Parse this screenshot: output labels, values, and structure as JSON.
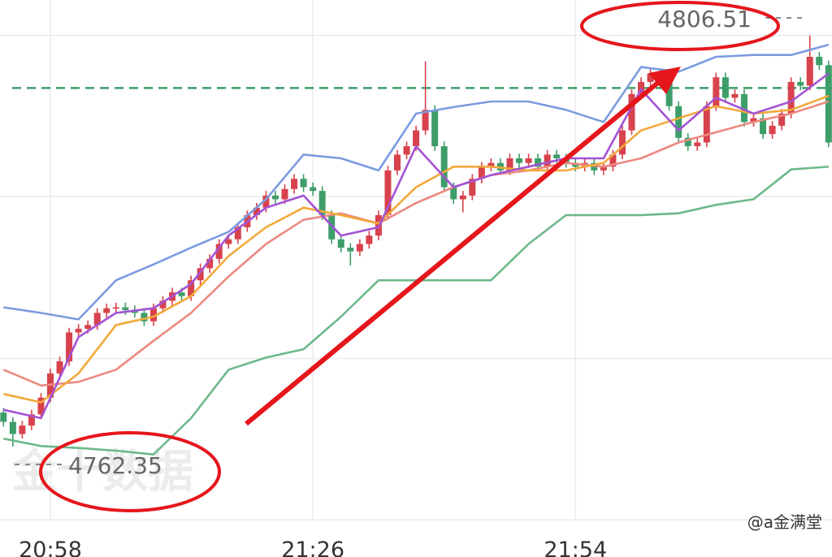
{
  "chart_data": {
    "type": "candlestick",
    "x": [
      null,
      null,
      null,
      null,
      null,
      "20:58",
      null,
      null,
      null,
      null,
      null,
      null,
      null,
      null,
      null,
      null,
      null,
      null,
      null,
      null,
      null,
      null,
      null,
      null,
      null,
      null,
      null,
      null,
      null,
      null,
      null,
      null,
      null,
      "21:26",
      null,
      null,
      null,
      null,
      null,
      null,
      null,
      null,
      null,
      null,
      null,
      null,
      null,
      null,
      null,
      null,
      null,
      null,
      null,
      null,
      null,
      null,
      null,
      null,
      null,
      null,
      null,
      "21:54",
      null,
      null,
      null,
      null,
      null,
      null,
      null,
      null,
      null,
      null,
      null,
      null,
      null,
      null,
      null,
      null,
      null,
      null,
      null,
      null,
      null,
      null,
      null,
      null,
      null,
      null,
      null
    ],
    "open": [
      4766.0,
      4765.0,
      4763.7,
      4764.6,
      4765.8,
      4767.6,
      4770.2,
      4771.5,
      4774.6,
      4775.0,
      4775.4,
      4776.7,
      4777.2,
      4777.3,
      4777.0,
      4776.7,
      4775.8,
      4777.2,
      4778.0,
      4778.9,
      4778.5,
      4780.2,
      4781.5,
      4782.5,
      4784.1,
      4784.6,
      4785.9,
      4787.2,
      4788.0,
      4789.3,
      4788.9,
      4790.0,
      4791.1,
      4790.2,
      4789.8,
      4787.2,
      4784.6,
      4783.7,
      4783.3,
      4784.1,
      4785.0,
      4787.2,
      4792.0,
      4793.7,
      4794.6,
      4796.3,
      4798.5,
      4794.6,
      4790.2,
      4788.9,
      4789.3,
      4791.1,
      4792.4,
      4792.8,
      4792.0,
      4793.3,
      4792.8,
      4793.3,
      4792.4,
      4793.7,
      4793.3,
      4792.8,
      4792.4,
      4792.8,
      4792.0,
      4792.4,
      4793.7,
      4796.3,
      4800.2,
      4801.5,
      4802.4,
      4802.0,
      4798.9,
      4795.5,
      4794.6,
      4795.0,
      4798.9,
      4802.0,
      4799.8,
      4800.2,
      4797.2,
      4797.6,
      4795.9,
      4796.8,
      4798.1,
      4801.5,
      4801.1,
      4804.2,
      4803.3
    ],
    "high": [
      4766.5,
      4765.5,
      4765.1,
      4766.3,
      4768.1,
      4770.7,
      4772.0,
      4775.1,
      4775.5,
      4775.9,
      4777.2,
      4777.7,
      4777.8,
      4777.8,
      4777.5,
      4777.2,
      4777.7,
      4778.5,
      4779.4,
      4779.4,
      4780.7,
      4782.0,
      4783.0,
      4784.6,
      4785.1,
      4786.4,
      4787.7,
      4788.5,
      4789.8,
      4789.8,
      4790.5,
      4791.6,
      4791.6,
      4790.7,
      4790.3,
      4787.7,
      4785.1,
      4784.2,
      4784.6,
      4785.5,
      4787.7,
      4792.5,
      4794.2,
      4795.1,
      4796.8,
      4803.7,
      4799.0,
      4795.1,
      4790.7,
      4789.8,
      4791.6,
      4792.9,
      4793.3,
      4793.3,
      4793.8,
      4793.8,
      4793.8,
      4793.8,
      4794.2,
      4794.2,
      4793.8,
      4793.3,
      4793.3,
      4793.3,
      4792.9,
      4794.2,
      4796.8,
      4800.7,
      4802.0,
      4802.9,
      4802.9,
      4802.5,
      4799.4,
      4796.0,
      4795.5,
      4799.4,
      4802.5,
      4802.5,
      4800.7,
      4800.7,
      4798.1,
      4798.1,
      4797.3,
      4798.6,
      4802.0,
      4802.0,
      4806.51,
      4804.7,
      4803.8
    ],
    "low": [
      4764.5,
      4762.35,
      4763.2,
      4764.1,
      4765.3,
      4767.1,
      4769.7,
      4771.0,
      4774.1,
      4774.5,
      4774.9,
      4776.2,
      4776.7,
      4776.5,
      4776.2,
      4775.3,
      4775.3,
      4776.7,
      4777.5,
      4778.0,
      4778.0,
      4779.7,
      4781.0,
      4782.0,
      4783.6,
      4784.1,
      4785.4,
      4786.7,
      4787.5,
      4788.4,
      4788.4,
      4789.5,
      4789.7,
      4789.3,
      4786.7,
      4784.1,
      4783.2,
      4781.8,
      4782.8,
      4783.6,
      4784.5,
      4786.7,
      4791.5,
      4793.2,
      4794.1,
      4795.8,
      4794.1,
      4789.7,
      4788.4,
      4787.5,
      4788.8,
      4790.6,
      4791.9,
      4791.5,
      4791.5,
      4792.3,
      4792.3,
      4791.9,
      4791.9,
      4792.8,
      4792.3,
      4791.9,
      4791.9,
      4791.5,
      4791.5,
      4791.9,
      4793.2,
      4795.8,
      4799.7,
      4801.0,
      4801.5,
      4798.4,
      4795.0,
      4794.1,
      4794.1,
      4794.5,
      4798.4,
      4799.3,
      4799.3,
      4796.7,
      4796.7,
      4795.4,
      4795.4,
      4796.3,
      4797.6,
      4800.6,
      4800.6,
      4802.8,
      4794.5
    ],
    "close": [
      4765.0,
      4763.7,
      4764.6,
      4765.8,
      4767.6,
      4770.2,
      4771.5,
      4774.6,
      4775.0,
      4775.4,
      4776.7,
      4777.2,
      4777.3,
      4777.0,
      4776.7,
      4775.8,
      4777.2,
      4778.0,
      4778.9,
      4778.5,
      4780.2,
      4781.5,
      4782.5,
      4784.1,
      4784.6,
      4785.9,
      4787.2,
      4788.0,
      4789.3,
      4788.9,
      4790.0,
      4791.1,
      4790.2,
      4789.8,
      4787.2,
      4784.6,
      4783.7,
      4783.3,
      4784.1,
      4785.0,
      4787.2,
      4792.0,
      4793.7,
      4794.6,
      4796.3,
      4798.5,
      4794.6,
      4790.2,
      4788.9,
      4789.3,
      4791.1,
      4792.4,
      4792.8,
      4792.0,
      4793.3,
      4792.8,
      4793.3,
      4792.4,
      4793.7,
      4793.3,
      4792.8,
      4792.4,
      4792.8,
      4792.0,
      4792.4,
      4793.7,
      4796.3,
      4800.2,
      4801.5,
      4802.4,
      4802.0,
      4798.9,
      4795.5,
      4794.6,
      4795.0,
      4798.9,
      4802.0,
      4799.8,
      4800.2,
      4797.2,
      4797.6,
      4795.9,
      4796.8,
      4798.1,
      4801.5,
      4801.1,
      4804.2,
      4803.3,
      4795.0
    ],
    "up_color": "#d8424c",
    "down_color": "#3e9e6a",
    "line_x": [
      0,
      4,
      8,
      12,
      16,
      20,
      24,
      28,
      32,
      36,
      40,
      44,
      48,
      52,
      56,
      60,
      64,
      68,
      72,
      76,
      80,
      84,
      88
    ],
    "lines": [
      {
        "color": "#7b9be0",
        "values": [
          4777.3,
          4776.7,
          4776.0,
          4780.2,
          4781.9,
          4783.7,
          4785.4,
          4788.9,
          4793.7,
          4793.3,
          4792.0,
          4798.1,
          4798.8,
          4799.4,
          4799.4,
          4798.5,
          4797.2,
          4803.1,
          4802.6,
          4804.2,
          4804.4,
          4804.4,
          4805.5
        ]
      },
      {
        "color": "#6db88a",
        "values": [
          4763.2,
          4762.4,
          4762.2,
          4761.9,
          4761.5,
          4765.4,
          4770.6,
          4771.9,
          4772.8,
          4776.3,
          4780.2,
          4780.2,
          4780.2,
          4780.2,
          4784.1,
          4787.2,
          4787.2,
          4787.2,
          4787.4,
          4788.3,
          4788.9,
          4792.1,
          4792.4
        ]
      },
      {
        "color": "#ec8a80",
        "values": [
          4770.6,
          4768.9,
          4769.3,
          4770.6,
          4773.7,
          4776.7,
          4780.6,
          4784.1,
          4786.7,
          4787.4,
          4786.3,
          4788.5,
          4790.2,
          4791.5,
          4792.0,
          4792.8,
          4792.4,
          4793.3,
          4795.0,
          4796.1,
          4797.2,
          4798.1,
          4799.4
        ]
      },
      {
        "color": "#f2a93b",
        "values": [
          4768.0,
          4767.1,
          4770.2,
          4775.4,
          4776.3,
          4778.5,
          4782.8,
          4785.9,
          4788.0,
          4787.2,
          4786.3,
          4790.2,
          4792.4,
          4792.4,
          4792.0,
          4792.0,
          4792.8,
          4796.3,
          4797.6,
          4798.9,
          4798.1,
          4798.5,
          4800.0
        ]
      },
      {
        "color": "#a453d4",
        "values": [
          4766.3,
          4765.4,
          4774.1,
          4776.7,
          4777.2,
          4779.8,
          4785.0,
          4788.0,
          4789.3,
          4785.0,
          4785.9,
          4794.6,
          4790.2,
          4791.5,
          4792.4,
          4793.3,
          4793.3,
          4800.7,
          4796.3,
          4799.8,
          4798.1,
          4799.4,
          4802.4
        ]
      }
    ],
    "ref_line": 4800.85,
    "ref_color": "#3e9e6a",
    "ylim": [
      4754.5,
      4810.3
    ],
    "yticks": [
      4754.5,
      4771.8,
      4789.2,
      4806.5
    ],
    "grid": true,
    "watermark": "金十数据",
    "credit": "@a金满堂"
  }
}
